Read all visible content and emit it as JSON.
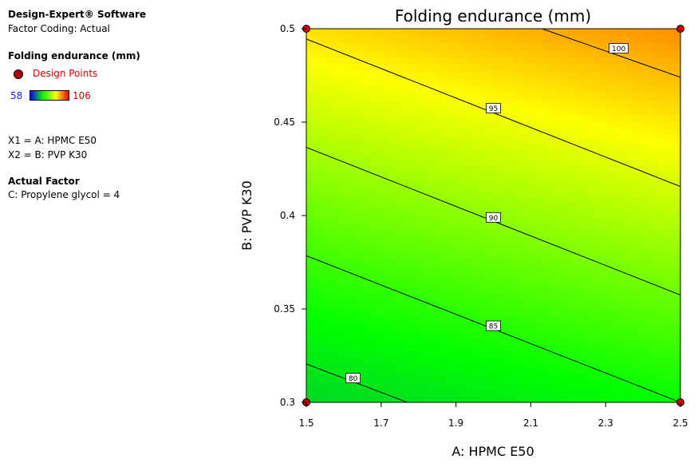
{
  "legend": {
    "software": "Design-Expert® Software",
    "coding": "Factor Coding: Actual",
    "response": "Folding endurance (mm)",
    "design_points": "Design Points",
    "scale_low": "58",
    "scale_high": "106",
    "x1": "X1 = A: HPMC E50",
    "x2": "X2 = B: PVP K30",
    "actual_factor_heading": "Actual Factor",
    "actual_factor": "C: Propylene glycol = 4"
  },
  "colors": {
    "low": "#0000ff",
    "mid": "#00ff00",
    "high": "#ff0000",
    "point": "#cc0000",
    "scale_low_text": "#1a1ae6",
    "scale_high_text": "#cc0000"
  },
  "chart_data": {
    "type": "contour",
    "title": "Folding endurance (mm)",
    "xlabel": "A: HPMC E50",
    "ylabel": "B: PVP K30",
    "xlim": [
      1.5,
      2.5
    ],
    "ylim": [
      0.3,
      0.5
    ],
    "xticks": [
      "1.5",
      "1.7",
      "1.9",
      "2.1",
      "2.3",
      "2.5"
    ],
    "yticks": [
      "0.3",
      "0.35",
      "0.4",
      "0.45",
      "0.5"
    ],
    "color_range": [
      58,
      106
    ],
    "contours": [
      {
        "level": "80",
        "label_at": [
          1.625,
          0.313
        ],
        "points": [
          [
            1.5,
            0.3205
          ],
          [
            1.77,
            0.3
          ]
        ]
      },
      {
        "level": "85",
        "label_at": [
          2.0,
          0.341
        ],
        "points": [
          [
            1.5,
            0.3785
          ],
          [
            2.5,
            0.3
          ]
        ]
      },
      {
        "level": "90",
        "label_at": [
          2.0,
          0.399
        ],
        "points": [
          [
            1.5,
            0.4365
          ],
          [
            2.5,
            0.3575
          ]
        ]
      },
      {
        "level": "95",
        "label_at": [
          2.0,
          0.4575
        ],
        "points": [
          [
            1.5,
            0.4945
          ],
          [
            2.5,
            0.4155
          ]
        ]
      },
      {
        "level": "100",
        "label_at": [
          2.335,
          0.4895
        ],
        "points": [
          [
            2.13,
            0.5
          ],
          [
            2.5,
            0.474
          ]
        ]
      }
    ],
    "design_points": [
      [
        1.5,
        0.3
      ],
      [
        2.5,
        0.3
      ],
      [
        1.5,
        0.5
      ],
      [
        2.5,
        0.5
      ]
    ]
  }
}
